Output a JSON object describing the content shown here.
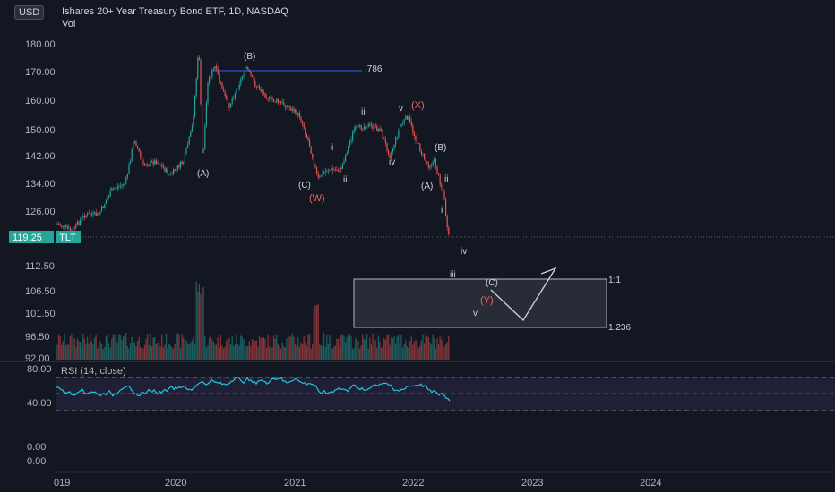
{
  "header": {
    "currency": "USD",
    "title": "Ishares 20+ Year Treasury Bond ETF, 1D, NASDAQ",
    "volume_label": "Vol"
  },
  "colors": {
    "background": "#131722",
    "up": "#26a69a",
    "down": "#ef5350",
    "rsi": "#22c5e0",
    "fib_line": "#2962ff",
    "wave_red": "#f06467"
  },
  "price_axis": {
    "ticks": [
      "180.00",
      "170.00",
      "160.00",
      "150.00",
      "142.00",
      "134.00",
      "126.00",
      "112.50",
      "106.50",
      "101.50",
      "96.50",
      "92.00"
    ],
    "last_price": "119.25",
    "symbol_tag": "TLT"
  },
  "time_axis": {
    "labels": [
      "019",
      "2020",
      "2021",
      "2022",
      "2023",
      "2024"
    ]
  },
  "rsi": {
    "label": "RSI (14, close)",
    "ticks": [
      "80.00",
      "40.00",
      "0.00",
      "0.00"
    ]
  },
  "fib": {
    "level_786": ".786",
    "level_1": "1:1",
    "level_1236": "1.236"
  },
  "waves": {
    "A1": "(A)",
    "B1": "(B)",
    "C1": "(C)",
    "W": "(W)",
    "i1": "i",
    "ii1": "ii",
    "iii1": "iii",
    "iv1": "iv",
    "v1": "v",
    "X": "(X)",
    "B2": "(B)",
    "A2": "(A)",
    "ii2": "ii",
    "i2": "i",
    "iv2": "iv",
    "iii2": "iii",
    "C2": "(C)",
    "Y": "(Y)",
    "v2": "v"
  }
}
